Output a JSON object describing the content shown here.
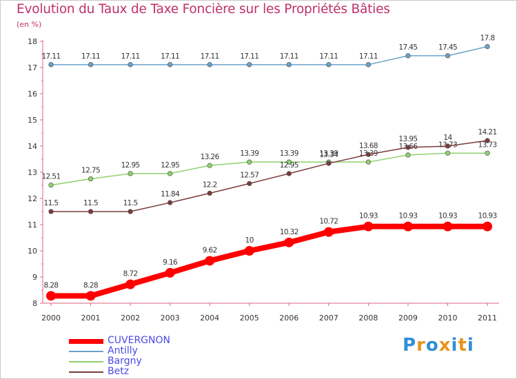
{
  "header": {
    "title": "Evolution du Taux de Taxe Foncière sur les Propriétés Bâties",
    "subtitle": "(en %)"
  },
  "logo": {
    "text": "Proxiti",
    "colors": [
      "#2f8fd6",
      "#e8951f",
      "#2f8fd6",
      "#e8951f",
      "#2f8fd6",
      "#e8951f",
      "#2f8fd6"
    ]
  },
  "chart_data": {
    "type": "line",
    "title": "Evolution du Taux de Taxe Foncière sur les Propriétés Bâties",
    "ylabel": "(en %)",
    "xlabel": "",
    "categories": [
      "2000",
      "2001",
      "2002",
      "2003",
      "2004",
      "2005",
      "2006",
      "2007",
      "2008",
      "2009",
      "2010",
      "2011"
    ],
    "ylim": [
      8,
      18
    ],
    "yticks": [
      8,
      9,
      10,
      11,
      12,
      13,
      14,
      15,
      16,
      17,
      18
    ],
    "grid": false,
    "legend": "bottom-left",
    "series": [
      {
        "name": "CUVERGNON",
        "color": "#ff0000",
        "emphasis": true,
        "values": [
          8.28,
          8.28,
          8.72,
          9.16,
          9.62,
          10,
          10.32,
          10.72,
          10.93,
          10.93,
          10.93,
          10.93
        ],
        "labels": [
          "8.28",
          "8.28",
          "8.72",
          "9.16",
          "9.62",
          "10",
          "10.32",
          "10.72",
          "10.93",
          "10.93",
          "10.93",
          "10.93"
        ]
      },
      {
        "name": "Antilly",
        "color": "#6aa2c9",
        "values": [
          17.11,
          17.11,
          17.11,
          17.11,
          17.11,
          17.11,
          17.11,
          17.11,
          17.11,
          17.45,
          17.45,
          17.8
        ],
        "labels": [
          "17.11",
          "17.11",
          "17.11",
          "17.11",
          "17.11",
          "17.11",
          "17.11",
          "17.11",
          "17.11",
          "17.45",
          "17.45",
          "17.8"
        ]
      },
      {
        "name": "Bargny",
        "color": "#8ed16e",
        "values": [
          12.51,
          12.75,
          12.95,
          12.95,
          13.26,
          13.39,
          13.39,
          13.39,
          13.39,
          13.66,
          13.73,
          13.73
        ],
        "labels": [
          "12.51",
          "12.75",
          "12.95",
          "12.95",
          "13.26",
          "13.39",
          "13.39",
          "13.39",
          "13.39",
          "13.66",
          "13.73",
          "13.73"
        ]
      },
      {
        "name": "Betz",
        "color": "#7a3b3b",
        "values": [
          11.5,
          11.5,
          11.5,
          11.84,
          12.2,
          12.57,
          12.95,
          13.34,
          13.68,
          13.95,
          14,
          14.21
        ],
        "labels": [
          "11.5",
          "11.5",
          "11.5",
          "11.84",
          "12.2",
          "12.57",
          "12.95",
          "13.34",
          "13.68",
          "13.95",
          "14",
          "14.21"
        ]
      }
    ]
  }
}
